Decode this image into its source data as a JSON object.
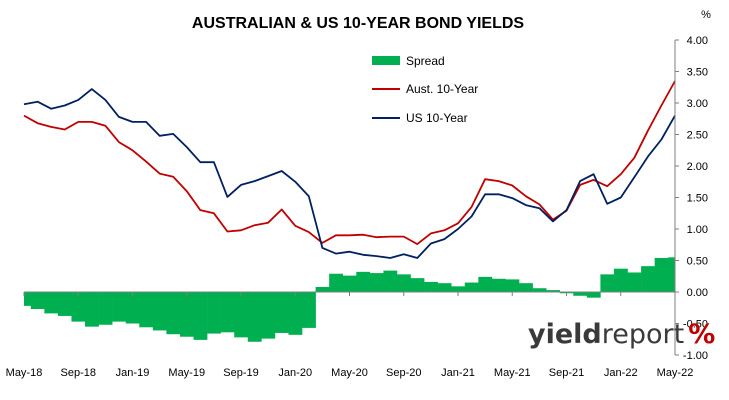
{
  "chart_data": {
    "type": "line",
    "title": "AUSTRALIAN & US 10-YEAR BOND YIELDS",
    "y_unit": "%",
    "ylim": [
      -1.0,
      4.0
    ],
    "y_ticks": [
      "4.00",
      "3.50",
      "3.00",
      "2.50",
      "2.00",
      "1.50",
      "1.00",
      "0.50",
      "0.00",
      "-0.50",
      "-1.00"
    ],
    "x_ticks": [
      "May-18",
      "Sep-18",
      "Jan-19",
      "May-19",
      "Sep-19",
      "Jan-20",
      "May-20",
      "Sep-20",
      "Jan-21",
      "May-21",
      "Sep-21",
      "Jan-22",
      "May-22"
    ],
    "xlim": [
      "2018-05",
      "2022-05"
    ],
    "grid": false,
    "legend_position": "top-center",
    "x": [
      "2018-05",
      "2018-06",
      "2018-07",
      "2018-08",
      "2018-09",
      "2018-10",
      "2018-11",
      "2018-12",
      "2019-01",
      "2019-02",
      "2019-03",
      "2019-04",
      "2019-05",
      "2019-06",
      "2019-07",
      "2019-08",
      "2019-09",
      "2019-10",
      "2019-11",
      "2019-12",
      "2020-01",
      "2020-02",
      "2020-03",
      "2020-04",
      "2020-05",
      "2020-06",
      "2020-07",
      "2020-08",
      "2020-09",
      "2020-10",
      "2020-11",
      "2020-12",
      "2021-01",
      "2021-02",
      "2021-03",
      "2021-04",
      "2021-05",
      "2021-06",
      "2021-07",
      "2021-08",
      "2021-09",
      "2021-10",
      "2021-11",
      "2021-12",
      "2022-01",
      "2022-02",
      "2022-03",
      "2022-04",
      "2022-05"
    ],
    "series": [
      {
        "name": "Spread",
        "type": "bar",
        "color": "#00b050",
        "values": [
          -0.22,
          -0.27,
          -0.34,
          -0.38,
          -0.47,
          -0.55,
          -0.52,
          -0.47,
          -0.5,
          -0.56,
          -0.61,
          -0.67,
          -0.71,
          -0.76,
          -0.66,
          -0.64,
          -0.72,
          -0.79,
          -0.74,
          -0.65,
          -0.68,
          -0.57,
          0.08,
          0.29,
          0.26,
          0.32,
          0.3,
          0.34,
          0.28,
          0.22,
          0.16,
          0.14,
          0.09,
          0.15,
          0.24,
          0.21,
          0.2,
          0.14,
          0.06,
          0.03,
          -0.02,
          -0.06,
          -0.09,
          0.28,
          0.37,
          0.31,
          0.41,
          0.54,
          0.55
        ]
      },
      {
        "name": "Aust. 10-Year",
        "type": "line",
        "color": "#c00000",
        "values": [
          2.8,
          2.68,
          2.62,
          2.58,
          2.7,
          2.7,
          2.64,
          2.38,
          2.25,
          2.07,
          1.88,
          1.83,
          1.6,
          1.3,
          1.25,
          0.96,
          0.98,
          1.06,
          1.1,
          1.31,
          1.05,
          0.95,
          0.78,
          0.9,
          0.9,
          0.91,
          0.87,
          0.88,
          0.88,
          0.76,
          0.93,
          0.98,
          1.09,
          1.35,
          1.79,
          1.76,
          1.69,
          1.52,
          1.39,
          1.15,
          1.29,
          1.7,
          1.78,
          1.68,
          1.87,
          2.13,
          2.56,
          2.96,
          3.35
        ]
      },
      {
        "name": "US 10-Year",
        "type": "line",
        "color": "#002060",
        "values": [
          2.98,
          3.02,
          2.91,
          2.96,
          3.05,
          3.22,
          3.05,
          2.78,
          2.7,
          2.7,
          2.48,
          2.51,
          2.3,
          2.06,
          2.06,
          1.51,
          1.7,
          1.76,
          1.84,
          1.92,
          1.75,
          1.52,
          0.7,
          0.61,
          0.64,
          0.59,
          0.57,
          0.54,
          0.6,
          0.54,
          0.77,
          0.84,
          1.0,
          1.2,
          1.55,
          1.55,
          1.49,
          1.38,
          1.33,
          1.12,
          1.3,
          1.76,
          1.87,
          1.4,
          1.5,
          1.82,
          2.15,
          2.42,
          2.8
        ]
      }
    ]
  },
  "brand": {
    "word1": "yield",
    "word2": "report",
    "mark": "%"
  }
}
